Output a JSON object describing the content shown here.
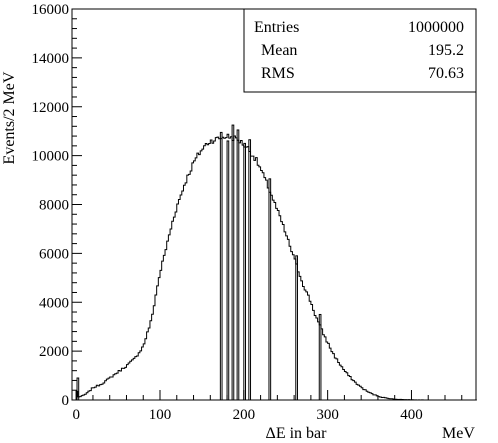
{
  "chart_data": {
    "type": "histogram",
    "xlabel": "ΔE in bar",
    "xunit": "MeV",
    "ylabel": "Events/2 MeV",
    "xlim": [
      -5,
      477
    ],
    "ylim": [
      0,
      16000
    ],
    "bin_width": 2,
    "xticks": [
      0,
      100,
      200,
      300,
      400
    ],
    "xtick_labels": [
      "0",
      "100",
      "200",
      "300",
      "400"
    ],
    "yticks": [
      0,
      2000,
      4000,
      6000,
      8000,
      10000,
      12000,
      14000,
      16000
    ],
    "ytick_labels": [
      "0",
      "2000",
      "4000",
      "6000",
      "8000",
      "10000",
      "12000",
      "14000",
      "16000"
    ],
    "grid": false,
    "stats_box": {
      "rows": [
        {
          "label": "Entries",
          "value": "1000000"
        },
        {
          "label": "Mean",
          "value": "195.2"
        },
        {
          "label": "RMS",
          "value": "70.63"
        }
      ]
    },
    "histogram_profile": {
      "x": [
        0,
        1,
        2,
        4,
        8,
        12,
        20,
        30,
        40,
        50,
        60,
        70,
        80,
        90,
        95,
        100,
        105,
        110,
        115,
        120,
        125,
        130,
        135,
        140,
        145,
        150,
        155,
        160,
        165,
        170,
        175,
        180,
        185,
        190,
        195,
        200,
        205,
        210,
        215,
        220,
        225,
        230,
        235,
        240,
        245,
        250,
        255,
        260,
        265,
        270,
        275,
        280,
        285,
        290,
        295,
        300,
        305,
        310,
        315,
        320,
        325,
        330,
        335,
        340,
        345,
        350,
        355,
        360,
        365,
        370,
        375,
        380,
        390,
        400,
        410,
        420,
        430,
        440,
        450,
        477
      ],
      "y": [
        750,
        350,
        150,
        120,
        180,
        250,
        500,
        650,
        900,
        1150,
        1400,
        1700,
        2200,
        3300,
        4300,
        5200,
        5900,
        6600,
        7300,
        7900,
        8400,
        8900,
        9300,
        9700,
        10000,
        10250,
        10450,
        10600,
        10650,
        10700,
        10750,
        10800,
        10750,
        10700,
        10600,
        10450,
        10300,
        10050,
        9800,
        9450,
        9050,
        8650,
        8200,
        7750,
        7300,
        6800,
        6300,
        5800,
        5300,
        4800,
        4400,
        4000,
        3500,
        3100,
        2700,
        2350,
        2000,
        1700,
        1450,
        1200,
        1000,
        820,
        660,
        520,
        400,
        300,
        220,
        160,
        115,
        80,
        55,
        35,
        18,
        8,
        3,
        1,
        0,
        0,
        0,
        0
      ]
    },
    "spikes": [
      {
        "x": 1,
        "y": 900
      },
      {
        "x": 172,
        "y": 10950
      },
      {
        "x": 180,
        "y": 10600
      },
      {
        "x": 186,
        "y": 11250
      },
      {
        "x": 192,
        "y": 11050
      },
      {
        "x": 200,
        "y": 10500
      },
      {
        "x": 206,
        "y": 10650
      },
      {
        "x": 230,
        "y": 9050
      },
      {
        "x": 262,
        "y": 5900
      },
      {
        "x": 290,
        "y": 3500
      }
    ]
  }
}
